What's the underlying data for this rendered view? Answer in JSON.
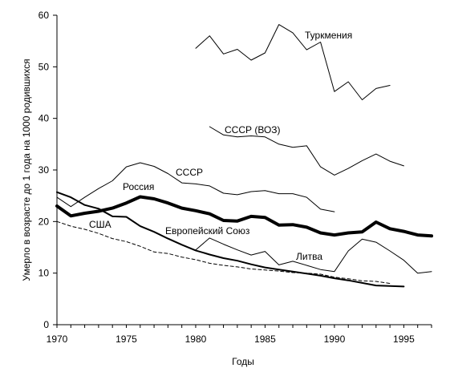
{
  "chart_data": {
    "type": "line",
    "title": "",
    "xlabel": "Годы",
    "ylabel": "Умерло в возрасте до 1 года на 1000 родившихся",
    "xlim": [
      1970,
      1997
    ],
    "ylim": [
      0,
      60
    ],
    "x_ticks": [
      "1970",
      "1975",
      "1980",
      "1985",
      "1990",
      "1995"
    ],
    "y_ticks": [
      "0",
      "10",
      "20",
      "30",
      "40",
      "50",
      "60"
    ],
    "grid": false,
    "legend": "inline labels",
    "series": [
      {
        "name": "Туркмения",
        "style": "thin",
        "points": [
          [
            1980,
            53.6
          ],
          [
            1981,
            56.0
          ],
          [
            1982,
            52.5
          ],
          [
            1983,
            53.4
          ],
          [
            1984,
            51.3
          ],
          [
            1985,
            52.7
          ],
          [
            1986,
            58.2
          ],
          [
            1987,
            56.6
          ],
          [
            1988,
            53.3
          ],
          [
            1989,
            54.8
          ],
          [
            1990,
            45.2
          ],
          [
            1991,
            47.1
          ],
          [
            1992,
            43.6
          ],
          [
            1993,
            45.8
          ],
          [
            1994,
            46.4
          ]
        ]
      },
      {
        "name": "СССР (ВОЗ)",
        "style": "thin",
        "points": [
          [
            1981,
            38.4
          ],
          [
            1982,
            36.8
          ],
          [
            1983,
            36.4
          ],
          [
            1984,
            36.6
          ],
          [
            1985,
            36.4
          ],
          [
            1986,
            35.0
          ],
          [
            1987,
            34.4
          ],
          [
            1988,
            34.7
          ],
          [
            1989,
            30.6
          ],
          [
            1990,
            29.0
          ],
          [
            1991,
            30.3
          ],
          [
            1992,
            31.8
          ],
          [
            1993,
            33.1
          ],
          [
            1994,
            31.7
          ],
          [
            1995,
            30.8
          ]
        ]
      },
      {
        "name": "СССР",
        "style": "thin",
        "points": [
          [
            1970,
            24.7
          ],
          [
            1971,
            22.9
          ],
          [
            1972,
            24.7
          ],
          [
            1973,
            26.4
          ],
          [
            1974,
            27.9
          ],
          [
            1975,
            30.6
          ],
          [
            1976,
            31.4
          ],
          [
            1977,
            30.7
          ],
          [
            1978,
            29.3
          ],
          [
            1979,
            27.5
          ],
          [
            1980,
            27.3
          ],
          [
            1981,
            26.9
          ],
          [
            1982,
            25.5
          ],
          [
            1983,
            25.2
          ],
          [
            1984,
            25.8
          ],
          [
            1985,
            26.0
          ],
          [
            1986,
            25.4
          ],
          [
            1987,
            25.4
          ],
          [
            1988,
            24.7
          ],
          [
            1989,
            22.4
          ],
          [
            1990,
            21.9
          ]
        ]
      },
      {
        "name": "Россия",
        "style": "bold",
        "points": [
          [
            1970,
            23.0
          ],
          [
            1971,
            21.1
          ],
          [
            1972,
            21.6
          ],
          [
            1973,
            22.0
          ],
          [
            1974,
            22.6
          ],
          [
            1975,
            23.6
          ],
          [
            1976,
            24.8
          ],
          [
            1977,
            24.4
          ],
          [
            1978,
            23.6
          ],
          [
            1979,
            22.6
          ],
          [
            1980,
            22.1
          ],
          [
            1981,
            21.5
          ],
          [
            1982,
            20.2
          ],
          [
            1983,
            20.1
          ],
          [
            1984,
            21.0
          ],
          [
            1985,
            20.8
          ],
          [
            1986,
            19.3
          ],
          [
            1987,
            19.4
          ],
          [
            1988,
            18.9
          ],
          [
            1989,
            17.8
          ],
          [
            1990,
            17.4
          ],
          [
            1991,
            17.8
          ],
          [
            1992,
            18.0
          ],
          [
            1993,
            19.9
          ],
          [
            1994,
            18.6
          ],
          [
            1995,
            18.1
          ],
          [
            1996,
            17.4
          ],
          [
            1997,
            17.2
          ]
        ]
      },
      {
        "name": "Европейский Союз",
        "style": "medium",
        "points": [
          [
            1970,
            25.7
          ],
          [
            1971,
            24.7
          ],
          [
            1972,
            23.2
          ],
          [
            1973,
            22.5
          ],
          [
            1974,
            21.0
          ],
          [
            1975,
            20.9
          ],
          [
            1976,
            19.1
          ],
          [
            1977,
            18.0
          ],
          [
            1978,
            16.7
          ],
          [
            1979,
            15.5
          ],
          [
            1980,
            14.4
          ],
          [
            1981,
            13.6
          ],
          [
            1982,
            12.9
          ],
          [
            1983,
            12.4
          ],
          [
            1984,
            11.7
          ],
          [
            1985,
            11.1
          ],
          [
            1986,
            10.7
          ],
          [
            1987,
            10.3
          ],
          [
            1988,
            9.9
          ],
          [
            1989,
            9.5
          ],
          [
            1990,
            9.0
          ],
          [
            1991,
            8.6
          ],
          [
            1992,
            8.1
          ],
          [
            1993,
            7.6
          ],
          [
            1994,
            7.5
          ],
          [
            1995,
            7.4
          ]
        ]
      },
      {
        "name": "США",
        "style": "dashed",
        "points": [
          [
            1970,
            20.0
          ],
          [
            1971,
            19.1
          ],
          [
            1972,
            18.5
          ],
          [
            1973,
            17.7
          ],
          [
            1974,
            16.7
          ],
          [
            1975,
            16.1
          ],
          [
            1976,
            15.2
          ],
          [
            1977,
            14.1
          ],
          [
            1978,
            13.8
          ],
          [
            1979,
            13.1
          ],
          [
            1980,
            12.6
          ],
          [
            1981,
            11.9
          ],
          [
            1982,
            11.5
          ],
          [
            1983,
            11.2
          ],
          [
            1984,
            10.8
          ],
          [
            1985,
            10.6
          ],
          [
            1986,
            10.4
          ],
          [
            1987,
            10.1
          ],
          [
            1988,
            10.0
          ],
          [
            1989,
            9.8
          ],
          [
            1990,
            9.2
          ],
          [
            1991,
            8.9
          ],
          [
            1992,
            8.5
          ],
          [
            1993,
            8.4
          ],
          [
            1994,
            8.0
          ]
        ]
      },
      {
        "name": "Литва",
        "style": "thin",
        "points": [
          [
            1980,
            14.5
          ],
          [
            1981,
            16.8
          ],
          [
            1982,
            15.6
          ],
          [
            1983,
            14.5
          ],
          [
            1984,
            13.5
          ],
          [
            1985,
            14.2
          ],
          [
            1986,
            11.6
          ],
          [
            1987,
            12.3
          ],
          [
            1988,
            11.5
          ],
          [
            1989,
            10.7
          ],
          [
            1990,
            10.3
          ],
          [
            1991,
            14.3
          ],
          [
            1992,
            16.6
          ],
          [
            1993,
            16.0
          ],
          [
            1994,
            14.3
          ],
          [
            1995,
            12.5
          ],
          [
            1996,
            10.0
          ],
          [
            1997,
            10.3
          ]
        ]
      }
    ]
  }
}
